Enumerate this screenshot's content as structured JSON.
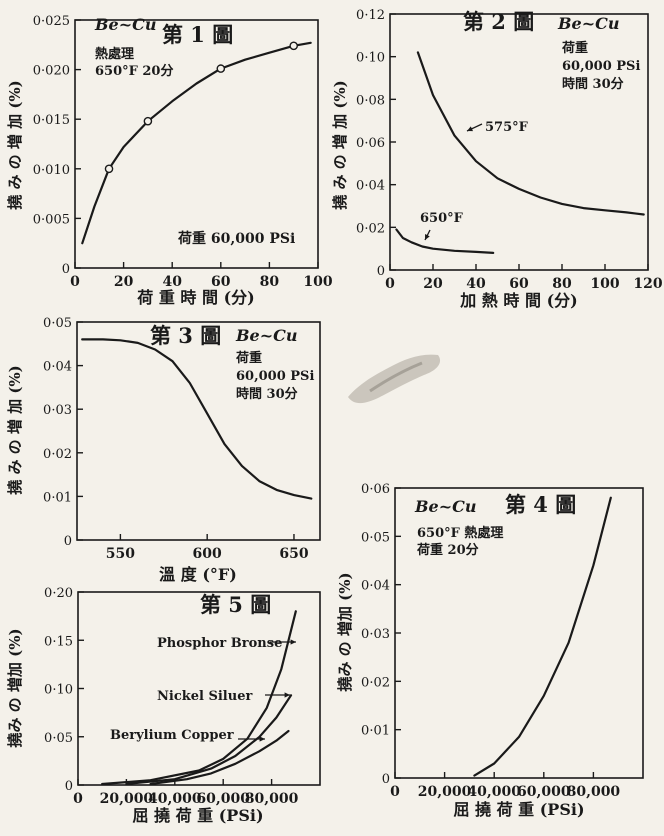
{
  "colors": {
    "paper": "#f4f1ea",
    "ink": "#1a1a1a"
  },
  "chart_data": [
    {
      "id": "fig1",
      "type": "line",
      "title": "第 1 圖",
      "material": "Be~Cu",
      "notes": [
        "熱處理",
        "650°F 20分"
      ],
      "annotation": "荷重  60,000 PSi",
      "xlabel": "荷 重 時 間 (分)",
      "ylabel": "撓 み の 増 加 (%)",
      "xlim": [
        0,
        100
      ],
      "ylim": [
        0,
        0.025
      ],
      "xticks": [
        0,
        20,
        40,
        60,
        80,
        100
      ],
      "xtick_labels": [
        "0",
        "20",
        "40",
        "60",
        "80",
        "100"
      ],
      "yticks": [
        0,
        0.005,
        0.01,
        0.015,
        0.02,
        0.025
      ],
      "ytick_labels": [
        "0",
        "0·005",
        "0·010",
        "0·015",
        "0·020",
        "0·025"
      ],
      "series": [
        {
          "x": [
            3,
            8,
            14,
            20,
            30,
            40,
            50,
            60,
            70,
            80,
            90,
            97
          ],
          "y": [
            0.0025,
            0.0062,
            0.01,
            0.0122,
            0.0148,
            0.0168,
            0.0186,
            0.0201,
            0.021,
            0.0217,
            0.0224,
            0.0227
          ],
          "markers": [
            {
              "x": 14,
              "y": 0.01
            },
            {
              "x": 30,
              "y": 0.0148
            },
            {
              "x": 60,
              "y": 0.0201
            },
            {
              "x": 90,
              "y": 0.0224
            }
          ]
        }
      ]
    },
    {
      "id": "fig2",
      "type": "line",
      "title": "第 2 圖",
      "material": "Be~Cu",
      "notes": [
        "荷重",
        "60,000 PSi",
        "時間 30分"
      ],
      "xlabel": "加 熱 時 間 (分)",
      "ylabel": "撓 み の 増 加 (%)",
      "xlim": [
        0,
        120
      ],
      "ylim": [
        0,
        0.12
      ],
      "xticks": [
        0,
        20,
        40,
        60,
        80,
        100,
        120
      ],
      "xtick_labels": [
        "0",
        "20",
        "40",
        "60",
        "80",
        "100",
        "120"
      ],
      "yticks": [
        0,
        0.02,
        0.04,
        0.06,
        0.08,
        0.1,
        0.12
      ],
      "ytick_labels": [
        "0",
        "0·02",
        "0·04",
        "0·06",
        "0·08",
        "0·10",
        "0·12"
      ],
      "series": [
        {
          "name": "575°F",
          "x": [
            13,
            20,
            30,
            40,
            50,
            60,
            70,
            80,
            90,
            100,
            110,
            118
          ],
          "y": [
            0.102,
            0.082,
            0.063,
            0.051,
            0.043,
            0.038,
            0.034,
            0.031,
            0.029,
            0.028,
            0.027,
            0.026
          ]
        },
        {
          "name": "650°F",
          "x": [
            3,
            6,
            10,
            15,
            20,
            30,
            40,
            48
          ],
          "y": [
            0.019,
            0.015,
            0.013,
            0.011,
            0.01,
            0.009,
            0.0085,
            0.008
          ]
        }
      ]
    },
    {
      "id": "fig3",
      "type": "line",
      "title": "第 3 圖",
      "material": "Be~Cu",
      "notes": [
        "荷重",
        "60,000 PSi",
        "時間 30分"
      ],
      "xlabel": "溫 度 (°F)",
      "ylabel": "撓 み の 増 加 (%)",
      "xlim": [
        525,
        665
      ],
      "ylim": [
        0,
        0.05
      ],
      "xticks": [
        550,
        600,
        650
      ],
      "xtick_labels": [
        "550",
        "600",
        "650"
      ],
      "yticks": [
        0,
        0.01,
        0.02,
        0.03,
        0.04,
        0.05
      ],
      "ytick_labels": [
        "0",
        "0·01",
        "0·02",
        "0·03",
        "0·04",
        "0·05"
      ],
      "series": [
        {
          "x": [
            528,
            540,
            550,
            560,
            570,
            580,
            590,
            600,
            610,
            620,
            630,
            640,
            650,
            660
          ],
          "y": [
            0.046,
            0.046,
            0.0458,
            0.0452,
            0.0437,
            0.041,
            0.036,
            0.029,
            0.022,
            0.017,
            0.0135,
            0.0115,
            0.0103,
            0.0095
          ]
        }
      ]
    },
    {
      "id": "fig4",
      "type": "line",
      "title": "第 4 圖",
      "material": "Be~Cu",
      "notes": [
        "650°F 熱處理",
        "荷重  20分"
      ],
      "xlabel": "屈 撓 荷 重 (PSi)",
      "ylabel": "撓み の 増加 (%)",
      "xlim": [
        0,
        100000
      ],
      "ylim": [
        0,
        0.06
      ],
      "xticks": [
        0,
        20000,
        40000,
        60000,
        80000
      ],
      "xtick_labels": [
        "0",
        "20,000",
        "40,000",
        "60,000",
        "80,000"
      ],
      "yticks": [
        0,
        0.01,
        0.02,
        0.03,
        0.04,
        0.05,
        0.06
      ],
      "ytick_labels": [
        "0",
        "0·01",
        "0·02",
        "0·03",
        "0·04",
        "0·05",
        "0·06"
      ],
      "series": [
        {
          "x": [
            32000,
            40000,
            50000,
            60000,
            70000,
            80000,
            87000
          ],
          "y": [
            0.0005,
            0.003,
            0.0085,
            0.017,
            0.028,
            0.044,
            0.058
          ]
        }
      ]
    },
    {
      "id": "fig5",
      "type": "line",
      "title": "第 5 圖",
      "xlabel": "屈 撓 荷 重 (PSi)",
      "ylabel": "撓み の 増加 (%)",
      "xlim": [
        0,
        100000
      ],
      "ylim": [
        0,
        0.2
      ],
      "xticks": [
        0,
        20000,
        40000,
        60000,
        80000
      ],
      "xtick_labels": [
        "0",
        "20,000",
        "40,000",
        "60,000",
        "80,000"
      ],
      "yticks": [
        0,
        0.05,
        0.1,
        0.15,
        0.2
      ],
      "ytick_labels": [
        "0",
        "0·05",
        "0·10",
        "0·15",
        "0·20"
      ],
      "series": [
        {
          "name": "Phosphor Bronse",
          "x": [
            10000,
            30000,
            50000,
            60000,
            70000,
            78000,
            84000,
            90000
          ],
          "y": [
            0.001,
            0.005,
            0.015,
            0.027,
            0.048,
            0.08,
            0.12,
            0.18
          ]
        },
        {
          "name": "Nickel  Siluer",
          "x": [
            20000,
            40000,
            55000,
            65000,
            75000,
            82000,
            88000
          ],
          "y": [
            0.001,
            0.006,
            0.017,
            0.03,
            0.05,
            0.07,
            0.093
          ]
        },
        {
          "name": "Berylium Copper",
          "x": [
            30000,
            45000,
            55000,
            65000,
            75000,
            82000,
            87000
          ],
          "y": [
            0.001,
            0.006,
            0.012,
            0.022,
            0.035,
            0.046,
            0.056
          ]
        }
      ]
    }
  ]
}
